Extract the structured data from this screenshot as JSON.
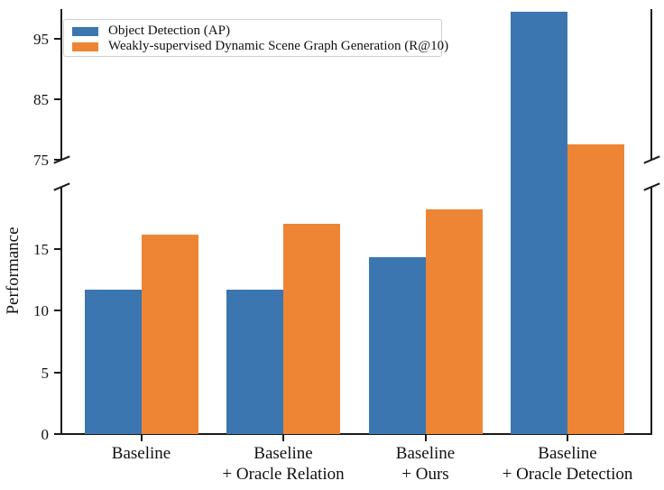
{
  "figure": {
    "background": "#ffffff",
    "axis_color": "#1a1a1a"
  },
  "chart_data": {
    "type": "bar",
    "title": "",
    "xlabel": "",
    "ylabel": "Performance",
    "grid": false,
    "legend_position": "upper left",
    "categories": [
      "Baseline",
      "Baseline\n+ Oracle Relation",
      "Baseline\n+ Ours",
      "Baseline\n+ Oracle Detection"
    ],
    "series": [
      {
        "name": "Object Detection (AP)",
        "color": "#3b76b0",
        "values": [
          11.7,
          11.7,
          14.3,
          99.5
        ]
      },
      {
        "name": "Weakly-supervised Dynamic Scene Graph Generation (R@10)",
        "color": "#ee8535",
        "values": [
          16.1,
          17.0,
          18.2,
          77.5
        ]
      }
    ],
    "broken_axis": {
      "lower_ylim": [
        0,
        20
      ],
      "upper_ylim": [
        75,
        100
      ],
      "lower_ticks": [
        0,
        5,
        10,
        15
      ],
      "upper_ticks": [
        75,
        85,
        95
      ]
    }
  }
}
